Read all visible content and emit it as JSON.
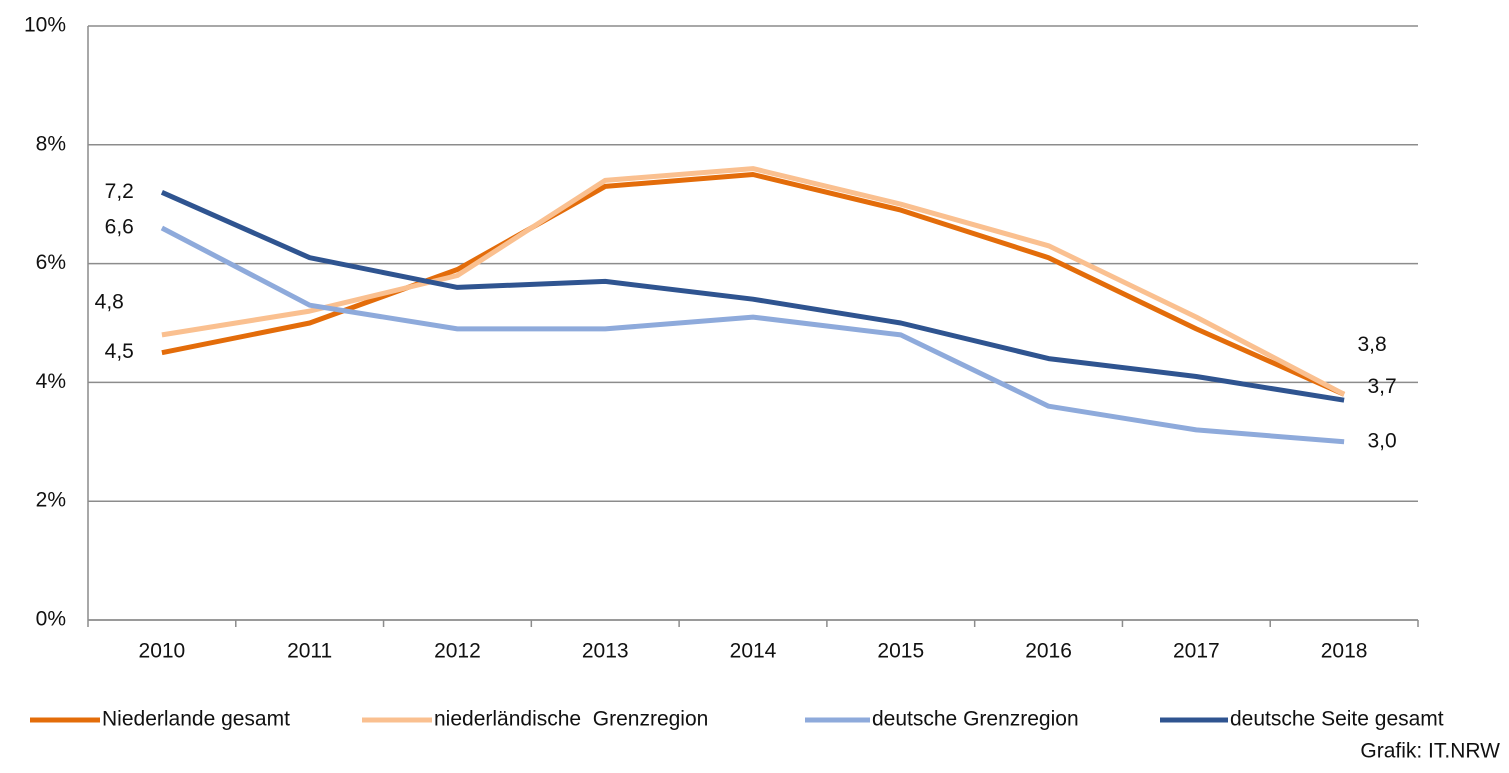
{
  "chart_data": {
    "type": "line",
    "categories": [
      "2010",
      "2011",
      "2012",
      "2013",
      "2014",
      "2015",
      "2016",
      "2017",
      "2018"
    ],
    "series": [
      {
        "name": "Niederlande gesamt",
        "color": "#e36c0a",
        "values": [
          4.5,
          5.0,
          5.9,
          7.3,
          7.5,
          6.9,
          6.1,
          4.9,
          3.8
        ],
        "value_labels": [
          "4,5",
          null,
          null,
          null,
          null,
          null,
          null,
          null,
          "3,8"
        ]
      },
      {
        "name": "niederländische  Grenzregion",
        "color": "#fac090",
        "values": [
          4.8,
          5.2,
          5.8,
          7.4,
          7.6,
          7.0,
          6.3,
          5.1,
          3.8
        ],
        "value_labels": [
          "4,8",
          null,
          null,
          null,
          null,
          null,
          null,
          null,
          null
        ]
      },
      {
        "name": "deutsche Grenzregion",
        "color": "#8eaadb",
        "values": [
          6.6,
          5.3,
          4.9,
          4.9,
          5.1,
          4.8,
          3.6,
          3.2,
          3.0
        ],
        "value_labels": [
          "6,6",
          null,
          null,
          null,
          null,
          null,
          null,
          null,
          "3,0"
        ]
      },
      {
        "name": "deutsche Seite gesamt",
        "color": "#2f5490",
        "values": [
          7.2,
          6.1,
          5.6,
          5.7,
          5.4,
          5.0,
          4.4,
          4.1,
          3.7
        ],
        "value_labels": [
          "7,2",
          null,
          null,
          null,
          null,
          null,
          null,
          null,
          "3,7"
        ]
      }
    ],
    "ylim": [
      0,
      10
    ],
    "yticks": [
      {
        "value": 0,
        "label": "0%"
      },
      {
        "value": 2,
        "label": "2%"
      },
      {
        "value": 4,
        "label": "4%"
      },
      {
        "value": 6,
        "label": "6%"
      },
      {
        "value": 8,
        "label": "8%"
      },
      {
        "value": 10,
        "label": "10%"
      }
    ],
    "grid": true,
    "legend": "bottom",
    "source": "Grafik: IT.NRW"
  }
}
